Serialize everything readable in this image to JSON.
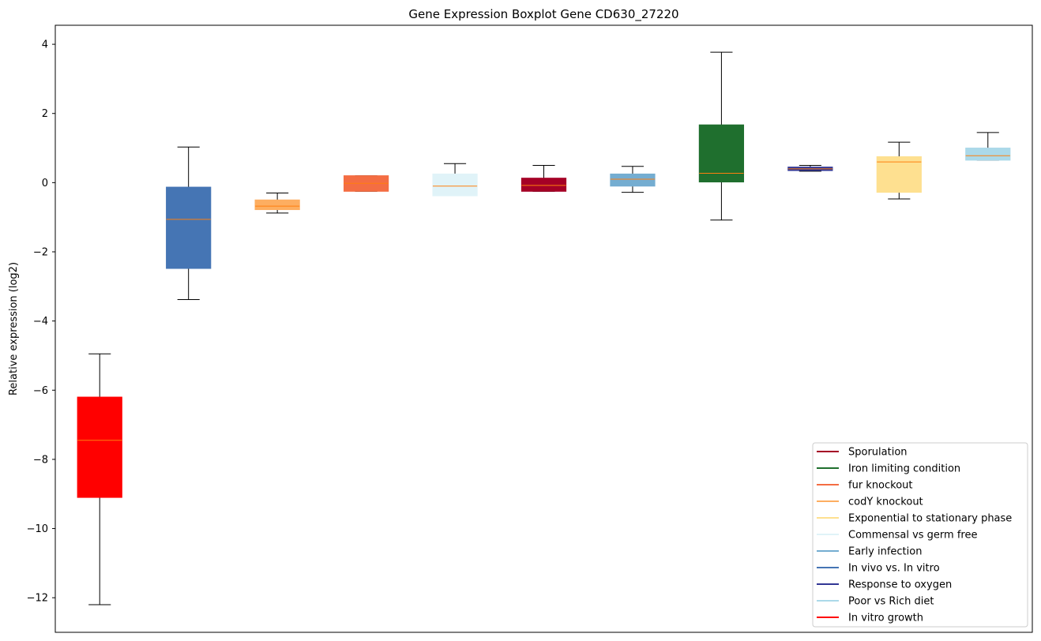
{
  "chart_data": {
    "type": "boxplot",
    "title": "Gene Expression Boxplot Gene CD630_27220",
    "xlabel": "",
    "ylabel": "Relative expression (log2)",
    "ylim": [
      -13.0,
      4.55
    ],
    "yticks": [
      4,
      2,
      0,
      -2,
      -4,
      -6,
      -8,
      -10,
      -12
    ],
    "ytick_labels": [
      "4",
      "2",
      "0",
      "−2",
      "−4",
      "−6",
      "−8",
      "−10",
      "−12"
    ],
    "legend_position": "lower-right",
    "median_color": "#ff7f0e",
    "boxes": [
      {
        "color": "#ff0000",
        "whislo": -12.2,
        "q1": -9.1,
        "med": -7.45,
        "q3": -6.2,
        "whishi": -4.95
      },
      {
        "color": "#4575b4",
        "whislo": -3.38,
        "q1": -2.48,
        "med": -1.06,
        "q3": -0.13,
        "whishi": 1.03
      },
      {
        "color": "#fdae61",
        "whislo": -0.88,
        "q1": -0.78,
        "med": -0.68,
        "q3": -0.5,
        "whishi": -0.3
      },
      {
        "color": "#f46d43",
        "whislo": -0.25,
        "q1": -0.25,
        "med": -0.02,
        "q3": 0.2,
        "whishi": 0.2
      },
      {
        "color": "#e0f3f8",
        "whislo": -0.38,
        "q1": -0.38,
        "med": -0.1,
        "q3": 0.25,
        "whishi": 0.55
      },
      {
        "color": "#a50026",
        "whislo": -0.25,
        "q1": -0.25,
        "med": -0.08,
        "q3": 0.13,
        "whishi": 0.5
      },
      {
        "color": "#74add1",
        "whislo": -0.28,
        "q1": -0.1,
        "med": 0.1,
        "q3": 0.25,
        "whishi": 0.47
      },
      {
        "color": "#1f6f2e",
        "whislo": -1.08,
        "q1": 0.02,
        "med": 0.27,
        "q3": 1.67,
        "whishi": 3.77
      },
      {
        "color": "#313695",
        "whislo": 0.33,
        "q1": 0.35,
        "med": 0.4,
        "q3": 0.45,
        "whishi": 0.5
      },
      {
        "color": "#fee090",
        "whislo": -0.47,
        "q1": -0.28,
        "med": 0.6,
        "q3": 0.75,
        "whishi": 1.17
      },
      {
        "color": "#abd9e9",
        "whislo": 0.65,
        "q1": 0.65,
        "med": 0.78,
        "q3": 1.0,
        "whishi": 1.45
      }
    ],
    "legend": [
      {
        "label": "Sporulation",
        "color": "#a50026"
      },
      {
        "label": "Iron limiting condition",
        "color": "#1f6f2e"
      },
      {
        "label": "fur knockout",
        "color": "#f46d43"
      },
      {
        "label": "codY knockout",
        "color": "#fdae61"
      },
      {
        "label": "Exponential to stationary phase",
        "color": "#fee090"
      },
      {
        "label": "Commensal vs germ free",
        "color": "#e0f3f8"
      },
      {
        "label": "Early infection",
        "color": "#74add1"
      },
      {
        "label": "In vivo vs. In vitro",
        "color": "#4575b4"
      },
      {
        "label": "Response to oxygen",
        "color": "#313695"
      },
      {
        "label": "Poor vs Rich diet",
        "color": "#abd9e9"
      },
      {
        "label": "In vitro growth",
        "color": "#ff0000"
      }
    ]
  }
}
